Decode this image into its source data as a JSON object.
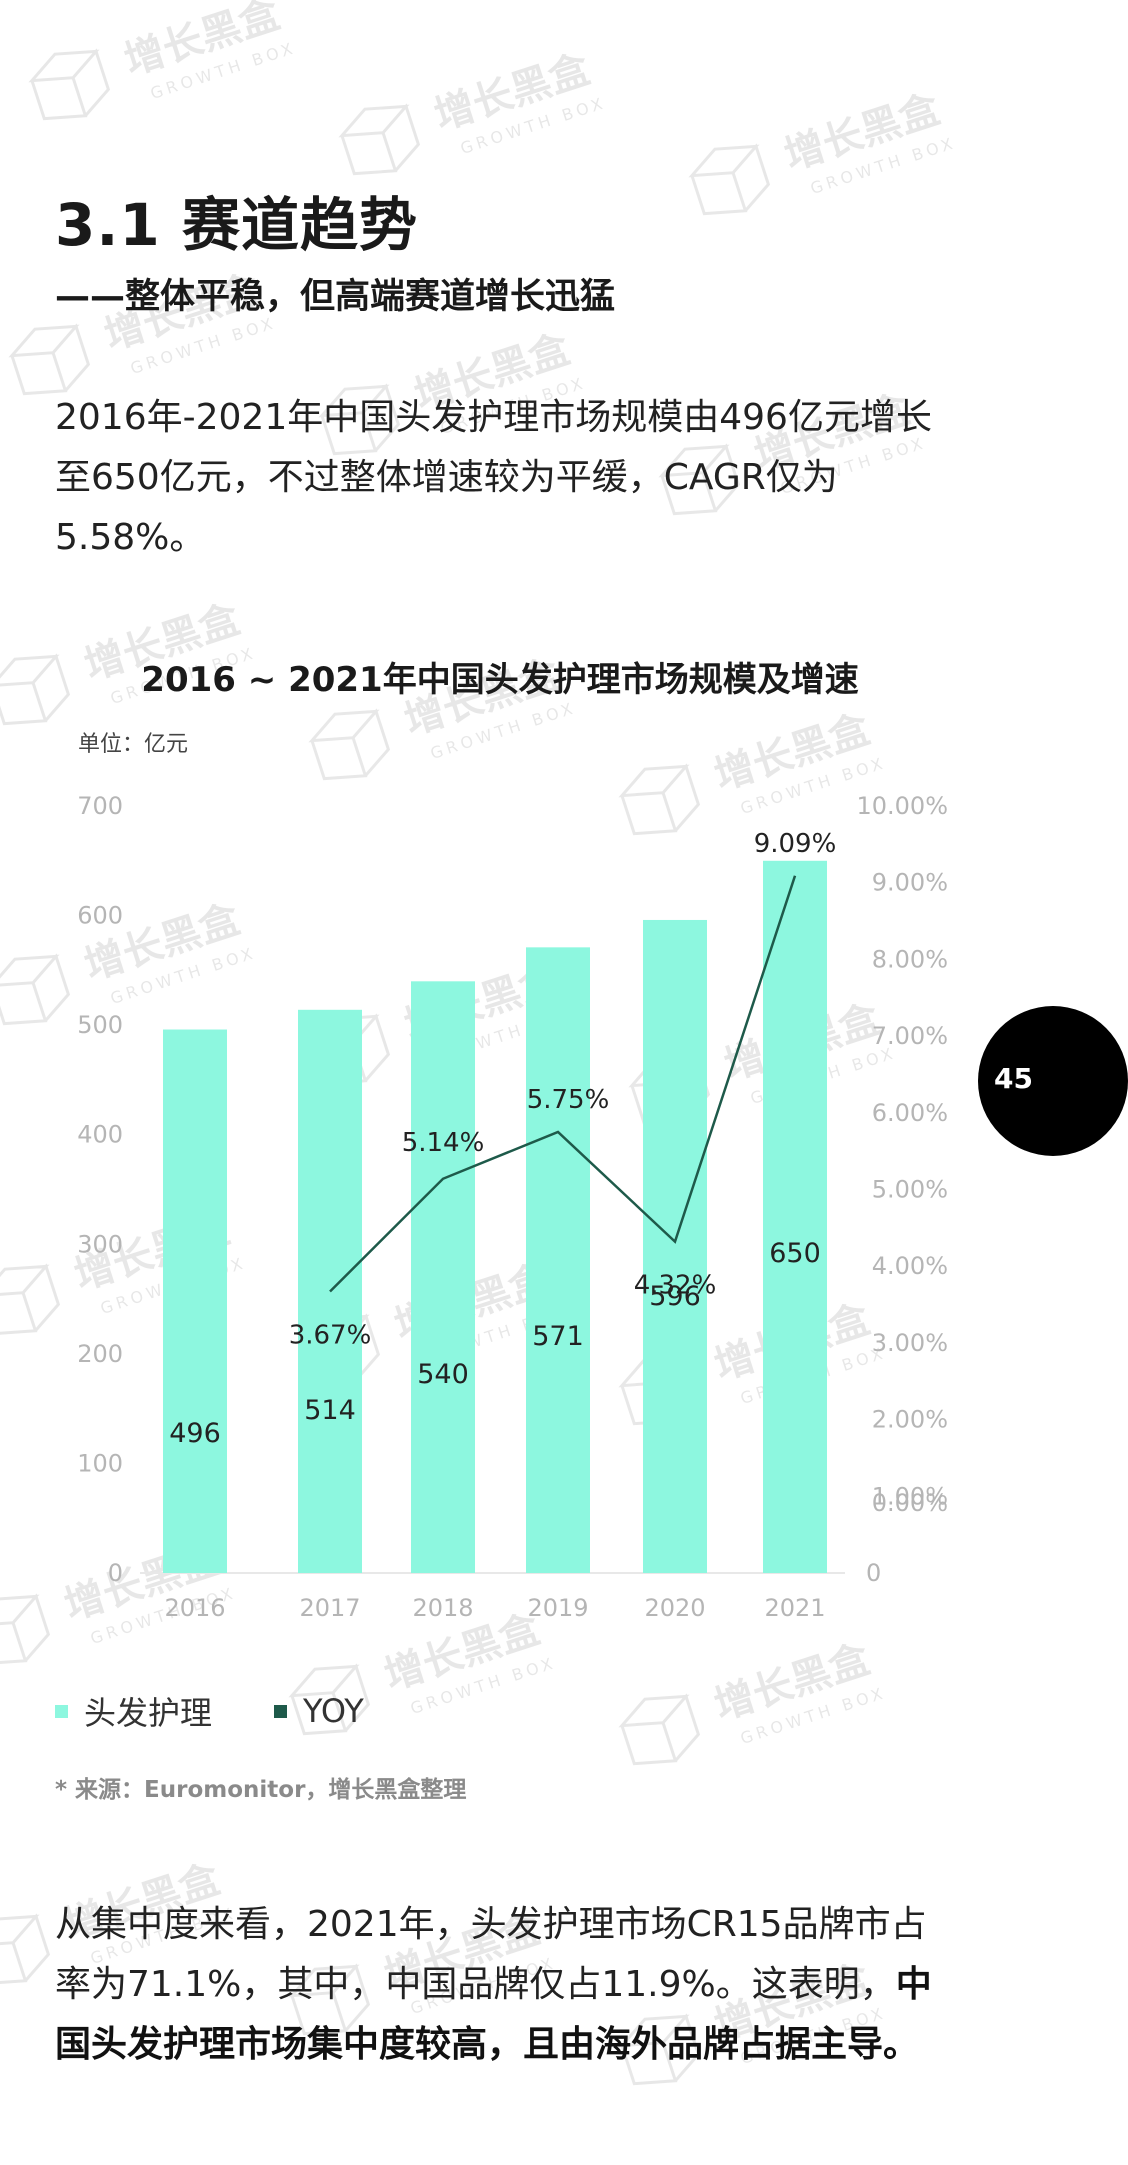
{
  "header": {
    "title": "3.1 赛道趋势",
    "subtitle": "——整体平稳，但高端赛道增长迅猛"
  },
  "intro": "2016年-2021年中国头发护理市场规模由496亿元增长至650亿元，不过整体增速较为平缓，CAGR仅为5.58%。",
  "chart_data": {
    "type": "bar",
    "title": "2016 ~ 2021年中国头发护理市场规模及增速",
    "unit": "单位：亿元",
    "categories": [
      "2016",
      "2017",
      "2018",
      "2019",
      "2020",
      "2021"
    ],
    "series": [
      {
        "name": "头发护理",
        "type": "bar",
        "axis": "left",
        "values": [
          496,
          514,
          540,
          571,
          596,
          650
        ],
        "labels": [
          "496",
          "514",
          "540",
          "571",
          "596",
          "650"
        ],
        "color": "#8df7df"
      },
      {
        "name": "YOY",
        "type": "line",
        "axis": "right",
        "values": [
          null,
          3.67,
          5.14,
          5.75,
          4.32,
          9.09
        ],
        "labels": [
          "",
          "3.67%",
          "5.14%",
          "5.75%",
          "4.32%",
          "9.09%"
        ],
        "color": "#1e5a4a"
      }
    ],
    "ylim_left": [
      0,
      700
    ],
    "yticks_left": [
      "0",
      "100",
      "200",
      "300",
      "400",
      "500",
      "600",
      "700"
    ],
    "ylim_right": [
      0,
      10
    ],
    "yticks_right": [
      "0",
      "0.00%",
      "1.00%",
      "2.00%",
      "3.00%",
      "4.00%",
      "5.00%",
      "6.00%",
      "7.00%",
      "8.00%",
      "9.00%",
      "10.00%"
    ],
    "legend_position": "bottom-left",
    "grid": false
  },
  "source": "* 来源：Euromonitor，增长黑盒整理",
  "conclusion": {
    "text": "从集中度来看，2021年，头发护理市场CR15品牌市占率为71.1%，其中，中国品牌仅占11.9%。这表明，",
    "bold": "中国头发护理市场集中度较高，且由海外品牌占据主导。"
  },
  "page_number": "45",
  "watermark_text": "增长黑盒",
  "watermark_subtext": "GROWTH BOX"
}
